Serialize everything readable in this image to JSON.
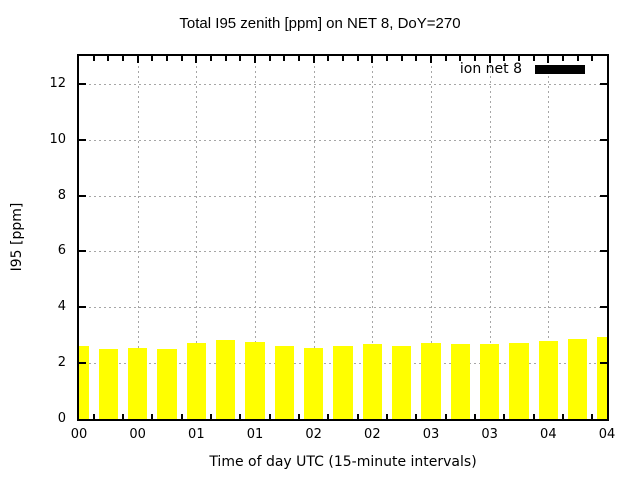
{
  "chart_data": {
    "type": "bar",
    "title": "Total I95 zenith [ppm] on NET 8, DoY=270",
    "xlabel": "Time of day UTC (15-minute intervals)",
    "ylabel": "I95 [ppm]",
    "grid": true,
    "gridline_color": "#a6a6a6",
    "bar_color": "#ffff00",
    "border_color": "#000000",
    "ylim": [
      0,
      13
    ],
    "yticks": [
      0,
      2,
      4,
      6,
      8,
      10,
      12
    ],
    "legend": {
      "label": "ion net 8",
      "position": "top-right-inside",
      "swatch_color": "#000000"
    },
    "x_axis": {
      "start_minutes": 0,
      "end_minutes": 270,
      "major_tick_minutes": 30,
      "minor_tick_minutes": 7.5,
      "bar_interval_minutes": 15,
      "tick_labels": [
        "00",
        "00",
        "01",
        "01",
        "02",
        "02",
        "03",
        "03",
        "04",
        "04"
      ]
    },
    "series": [
      {
        "name": "ion net 8",
        "times": [
          "00:00",
          "00:15",
          "00:30",
          "00:45",
          "01:00",
          "01:15",
          "01:30",
          "01:45",
          "02:00",
          "02:15",
          "02:30",
          "02:45",
          "03:00",
          "03:15",
          "03:30",
          "03:45",
          "04:00",
          "04:15",
          "04:30"
        ],
        "x_minutes": [
          0,
          15,
          30,
          45,
          60,
          75,
          90,
          105,
          120,
          135,
          150,
          165,
          180,
          195,
          210,
          225,
          240,
          255,
          270
        ],
        "values": [
          2.62,
          2.52,
          2.55,
          2.52,
          2.71,
          2.82,
          2.76,
          2.63,
          2.55,
          2.61,
          2.68,
          2.62,
          2.71,
          2.7,
          2.7,
          2.71,
          2.8,
          2.85,
          2.93
        ]
      }
    ]
  }
}
